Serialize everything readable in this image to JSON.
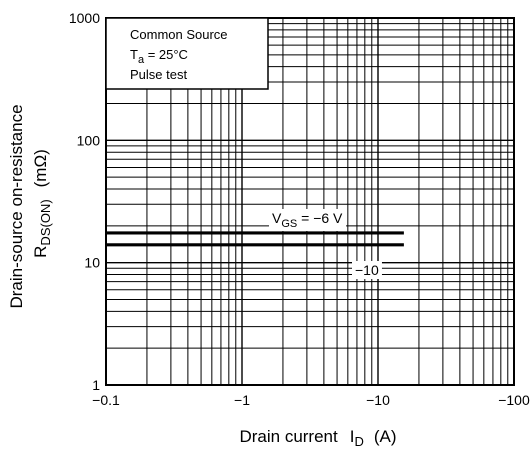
{
  "chart_data": {
    "type": "line",
    "x_scale": "log",
    "y_scale": "log",
    "xlim": [
      -0.1,
      -100
    ],
    "ylim": [
      1,
      1000
    ],
    "grid": true,
    "x_ticks": [
      "−0.1",
      "−1",
      "−10",
      "−100"
    ],
    "y_ticks": [
      "1",
      "10",
      "100",
      "1000"
    ],
    "xlabel": {
      "main": "Drain current",
      "symbol": "I",
      "sub": "D",
      "unit": "(A)"
    },
    "ylabel": {
      "line1": "Drain-source on-resistance",
      "symbol": "R",
      "sub": "DS(ON)",
      "unit": "(mΩ)"
    },
    "conditions": {
      "line1": "Common Source",
      "line2_symbol": "T",
      "line2_sub": "a",
      "line2_rest": " = 25°C",
      "line3": "Pulse test"
    },
    "series": [
      {
        "label_symbol": "V",
        "label_sub": "GS",
        "label_rest": " = −6 V",
        "x": [
          -0.1,
          -15.5
        ],
        "y": [
          17.5,
          17.5
        ]
      },
      {
        "label_rest": "−10",
        "x": [
          -0.1,
          -15.5
        ],
        "y": [
          14.0,
          14.0
        ]
      }
    ]
  }
}
